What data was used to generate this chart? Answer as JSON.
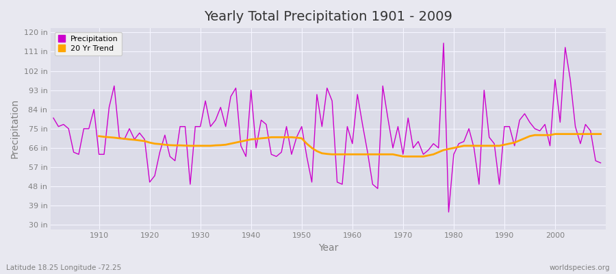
{
  "title": "Yearly Total Precipitation 1901 - 2009",
  "xlabel": "Year",
  "ylabel": "Precipitation",
  "subtitle": "Latitude 18.25 Longitude -72.25",
  "watermark": "worldspecies.org",
  "yticks": [
    30,
    39,
    48,
    57,
    66,
    75,
    84,
    93,
    102,
    111,
    120
  ],
  "ytick_labels": [
    "30 in",
    "39 in",
    "48 in",
    "57 in",
    "66 in",
    "75 in",
    "84 in",
    "93 in",
    "102 in",
    "111 in",
    "120 in"
  ],
  "ylim": [
    28,
    122
  ],
  "xlim": [
    1900.5,
    2010
  ],
  "xtick_vals": [
    1910,
    1920,
    1930,
    1940,
    1950,
    1960,
    1970,
    1980,
    1990,
    2000
  ],
  "years": [
    1901,
    1902,
    1903,
    1904,
    1905,
    1906,
    1907,
    1908,
    1909,
    1910,
    1911,
    1912,
    1913,
    1914,
    1915,
    1916,
    1917,
    1918,
    1919,
    1920,
    1921,
    1922,
    1923,
    1924,
    1925,
    1926,
    1927,
    1928,
    1929,
    1930,
    1931,
    1932,
    1933,
    1934,
    1935,
    1936,
    1937,
    1938,
    1939,
    1940,
    1941,
    1942,
    1943,
    1944,
    1945,
    1946,
    1947,
    1948,
    1949,
    1950,
    1951,
    1952,
    1953,
    1954,
    1955,
    1956,
    1957,
    1958,
    1959,
    1960,
    1961,
    1962,
    1963,
    1964,
    1965,
    1966,
    1967,
    1968,
    1969,
    1970,
    1971,
    1972,
    1973,
    1974,
    1975,
    1976,
    1977,
    1978,
    1979,
    1980,
    1981,
    1982,
    1983,
    1984,
    1985,
    1986,
    1987,
    1988,
    1989,
    1990,
    1991,
    1992,
    1993,
    1994,
    1995,
    1996,
    1997,
    1998,
    1999,
    2000,
    2001,
    2002,
    2003,
    2004,
    2005,
    2006,
    2007,
    2008,
    2009
  ],
  "precip": [
    80,
    76,
    77,
    75,
    64,
    63,
    75,
    75,
    84,
    63,
    63,
    85,
    95,
    71,
    70,
    75,
    70,
    73,
    70,
    50,
    53,
    64,
    72,
    62,
    60,
    76,
    76,
    49,
    76,
    76,
    88,
    76,
    79,
    85,
    76,
    90,
    94,
    67,
    62,
    93,
    66,
    79,
    77,
    63,
    62,
    64,
    76,
    63,
    71,
    76,
    62,
    50,
    91,
    76,
    94,
    88,
    50,
    49,
    76,
    68,
    91,
    77,
    64,
    49,
    47,
    95,
    80,
    66,
    76,
    63,
    80,
    66,
    69,
    63,
    65,
    68,
    66,
    115,
    36,
    63,
    68,
    69,
    75,
    66,
    49,
    93,
    71,
    68,
    49,
    76,
    76,
    67,
    79,
    82,
    78,
    75,
    74,
    77,
    67,
    98,
    78,
    113,
    98,
    76,
    68,
    77,
    74,
    60,
    59
  ],
  "trend": [
    null,
    null,
    null,
    null,
    null,
    null,
    null,
    null,
    null,
    71.5,
    71.2,
    71.0,
    70.8,
    70.5,
    70.3,
    70.0,
    69.8,
    69.5,
    69.2,
    68.5,
    68.0,
    67.8,
    67.5,
    67.3,
    67.2,
    67.2,
    67.1,
    67.0,
    67.0,
    67.0,
    67.0,
    67.0,
    67.2,
    67.3,
    67.5,
    68.0,
    68.5,
    69.0,
    69.5,
    70.0,
    70.2,
    70.5,
    70.7,
    71.0,
    71.0,
    71.0,
    71.0,
    71.0,
    70.8,
    70.5,
    68.0,
    66.0,
    64.5,
    63.5,
    63.2,
    63.0,
    63.0,
    63.0,
    63.0,
    63.0,
    63.0,
    63.0,
    63.0,
    63.0,
    63.0,
    63.0,
    63.0,
    63.0,
    62.5,
    62.0,
    62.0,
    62.0,
    62.0,
    62.0,
    62.5,
    63.0,
    64.0,
    65.0,
    65.5,
    66.0,
    66.5,
    67.0,
    67.0,
    67.0,
    67.0,
    67.0,
    67.0,
    67.0,
    67.0,
    67.5,
    68.0,
    68.5,
    69.5,
    70.5,
    71.5,
    72.0,
    72.0,
    72.0,
    72.0,
    72.5,
    72.5,
    72.5,
    72.5,
    72.5,
    72.5,
    72.5,
    72.5,
    72.5,
    72.5
  ],
  "precip_color": "#CC00CC",
  "trend_color": "#FFA500",
  "plot_bg_color": "#DCDCE8",
  "fig_bg_color": "#E8E8F0",
  "grid_color": "#F5F5FF",
  "title_color": "#333333",
  "label_color": "#808080",
  "legend_bg": "#F0F0F0",
  "legend_edge": "#CCCCCC"
}
